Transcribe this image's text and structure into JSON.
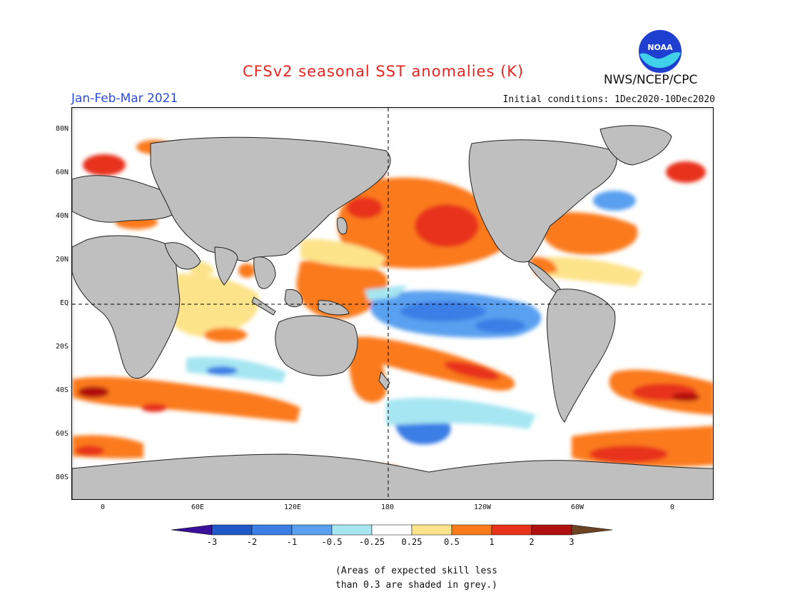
{
  "header": {
    "title": "CFSv2 seasonal SST anomalies (K)",
    "period": "Jan-Feb-Mar 2021",
    "initial_conditions": "Initial conditions: 1Dec2020-10Dec2020",
    "agency": "NWS/NCEP/CPC",
    "logo_text": "NOAA"
  },
  "map": {
    "type": "global SST anomaly forecast map",
    "lat_labels": [
      "80N",
      "60N",
      "40N",
      "20N",
      "EQ",
      "20S",
      "40S",
      "60S",
      "80S"
    ],
    "lon_labels": [
      "0",
      "60E",
      "120E",
      "180",
      "120W",
      "60W",
      "0"
    ],
    "land_color": "#bfbfbf",
    "regions": [
      {
        "name": "Equatorial central/eastern Pacific",
        "anomaly_class": "-1 to -0.5"
      },
      {
        "name": "North Pacific",
        "anomaly_class": "1 to 2"
      },
      {
        "name": "Western Pacific / Maritime Continent",
        "anomaly_class": "0.5 to 1"
      },
      {
        "name": "South Pacific diagonal band",
        "anomaly_class": "1 to 2"
      },
      {
        "name": "Southern Ocean near 60S Pacific sector",
        "anomaly_class": "-1 to -0.5"
      },
      {
        "name": "Indian Ocean",
        "anomaly_class": "0.25 to 0.5"
      },
      {
        "name": "South Atlantic 40S",
        "anomaly_class": "1 to 3"
      },
      {
        "name": "Southern Ocean Atlantic sector",
        "anomaly_class": "0.5 to 2"
      }
    ]
  },
  "colorbar": {
    "labels": [
      "-3",
      "-2",
      "-1",
      "-0.5",
      "-0.25",
      "0.25",
      "0.5",
      "1",
      "2",
      "3"
    ],
    "colors": [
      "#3a0f9a",
      "#2058c8",
      "#3a7ee6",
      "#5aa0f0",
      "#a6e6f2",
      "#ffffff",
      "#fde38a",
      "#fb7a1c",
      "#e8321a",
      "#b01010",
      "#6b4426"
    ]
  },
  "note": {
    "line1": "(Areas of expected skill less",
    "line2": "than 0.3 are shaded in grey.)"
  }
}
